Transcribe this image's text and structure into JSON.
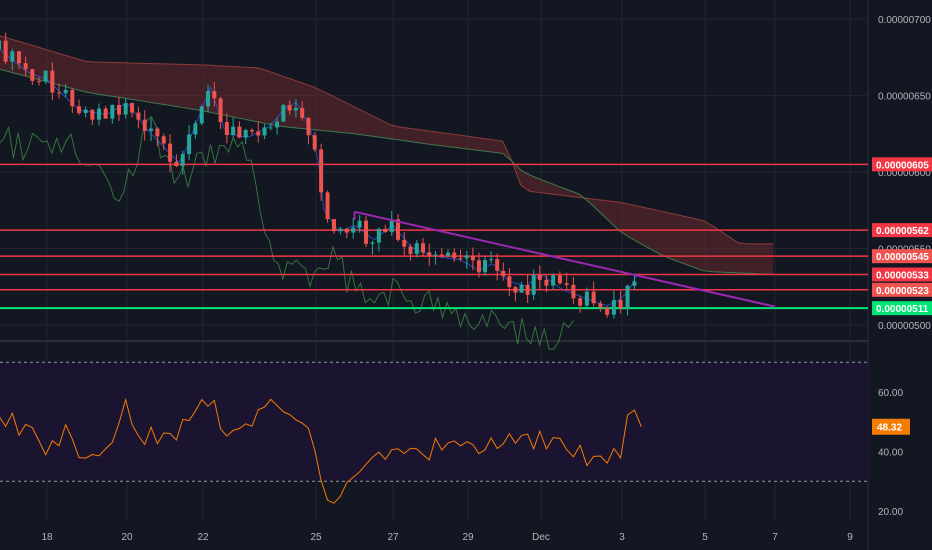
{
  "chart_data": [
    {
      "type": "candlestick",
      "x_ticks": [
        "18",
        "20",
        "22",
        "25",
        "27",
        "29",
        "Dec",
        "3",
        "5",
        "7",
        "9"
      ],
      "y_ticks": [
        "0.00000500",
        "0.00000550",
        "0.00000600",
        "0.00000650",
        "0.00000700"
      ],
      "ylim": [
        4.965e-06,
        7.155e-06
      ],
      "horizontal_levels": [
        {
          "label": "0.00000605",
          "value": 6.05e-06,
          "color": "#f23645",
          "tag_color": "#f23645"
        },
        {
          "label": "0.00000562",
          "value": 5.62e-06,
          "color": "#f23645",
          "tag_color": "#f23645"
        },
        {
          "label": "0.00000545",
          "value": 5.45e-06,
          "color": "#f23645",
          "tag_color": "#ef5350"
        },
        {
          "label": "0.00000533",
          "value": 5.33e-06,
          "color": "#f23645",
          "tag_color": "#f23645"
        },
        {
          "label": "0.00000523",
          "value": 5.23e-06,
          "color": "#f23645",
          "tag_color": "#ef5350"
        },
        {
          "label": "0.00000511",
          "value": 5.11e-06,
          "color": "#00e676",
          "tag_color": "#00e676"
        }
      ],
      "trendline": {
        "color": "#9c27b0",
        "from": {
          "date": "Nov 26",
          "value": 5.74e-06
        },
        "to": {
          "date": "Dec 7",
          "value": 5.12e-06
        }
      },
      "ichimoku_cloud": {
        "bearish_fill": "#7a2e2e",
        "bullish_fill": "#1f4d33"
      },
      "candle_colors": {
        "up": "#26a69a",
        "down": "#ef5350"
      }
    },
    {
      "type": "line",
      "indicator": "RSI",
      "y_ticks": [
        "20.00",
        "40.00",
        "60.00"
      ],
      "bands": [
        70,
        30
      ],
      "ylim": [
        17,
        80
      ],
      "current_label": "48.32",
      "current_value": 48.32,
      "line_color": "#f57c00",
      "band_fill": "#1b1430"
    }
  ],
  "colors": {
    "background": "#131722",
    "grid": "#1f2433",
    "axis_text": "#b2b5be"
  }
}
